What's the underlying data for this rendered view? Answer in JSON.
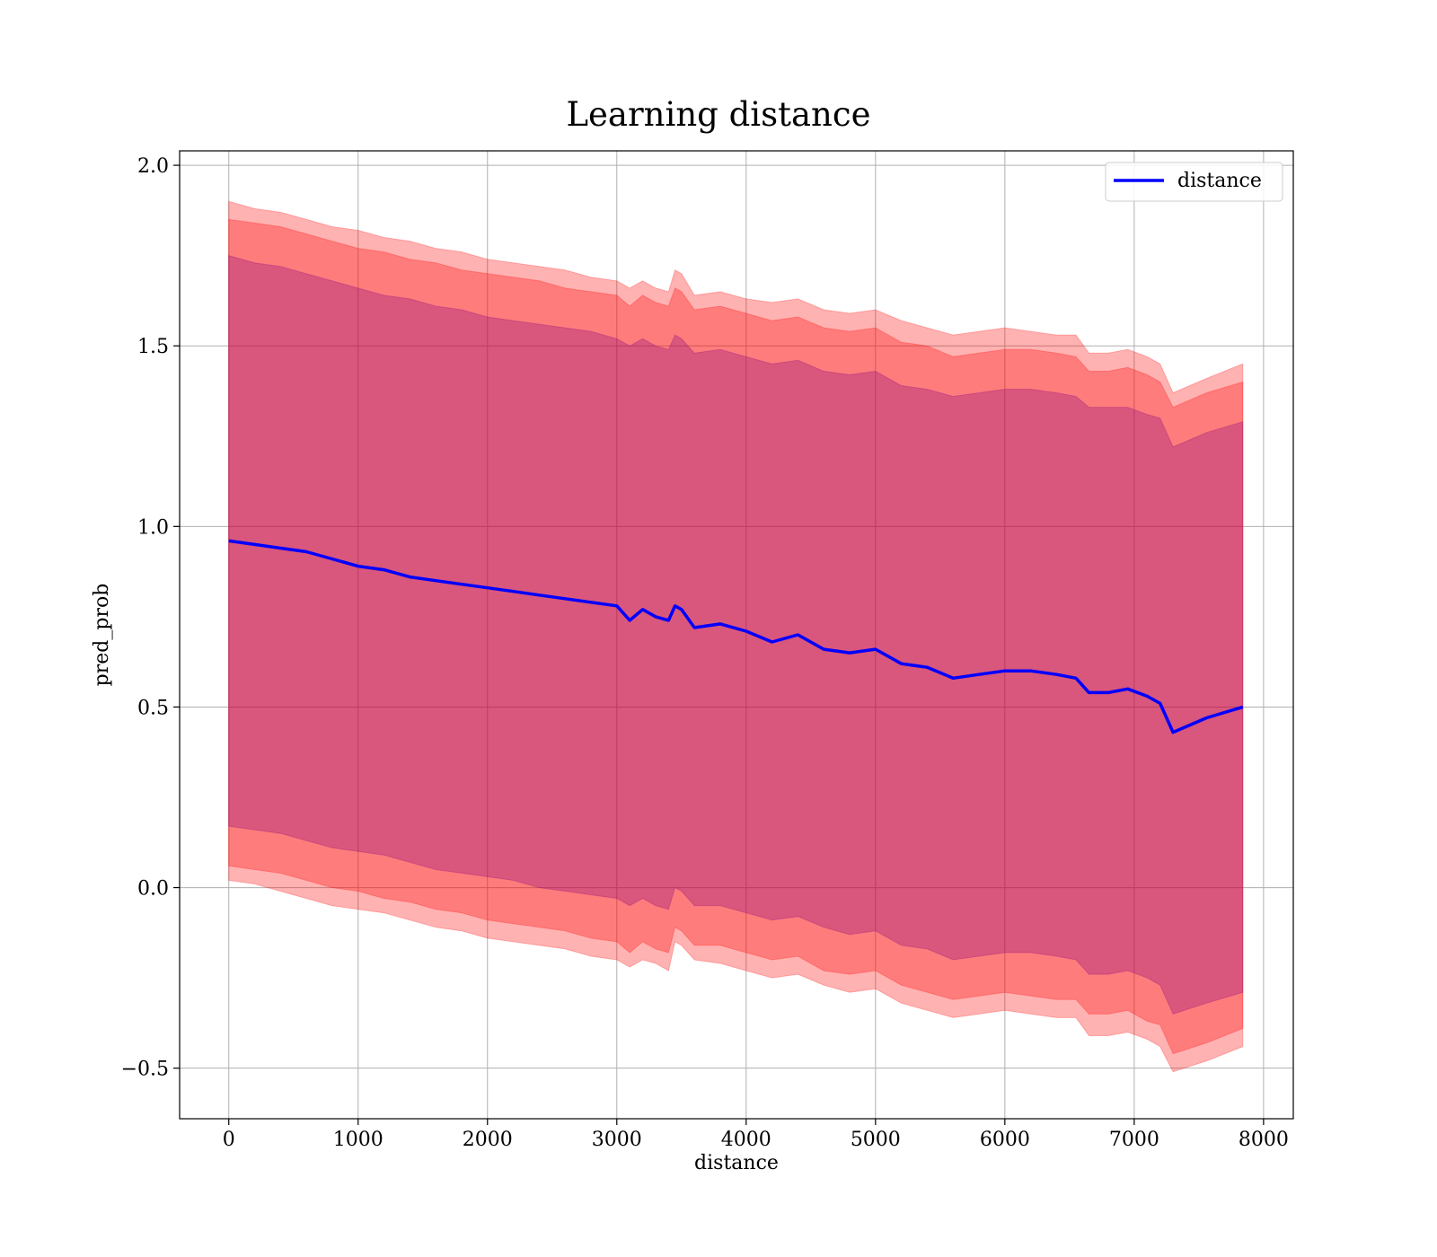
{
  "chart_data": {
    "type": "line",
    "title": "Learning distance",
    "xlabel": "distance",
    "ylabel": "pred_prob",
    "xlim": [
      -380,
      8230
    ],
    "ylim": [
      -0.64,
      2.04
    ],
    "grid": true,
    "legend_position": "top-right",
    "xticks": [
      0,
      1000,
      2000,
      3000,
      4000,
      5000,
      6000,
      7000,
      8000
    ],
    "yticks": [
      -0.5,
      0.0,
      0.5,
      1.0,
      1.5,
      2.0
    ],
    "xtick_labels": [
      "0",
      "1000",
      "2000",
      "3000",
      "4000",
      "5000",
      "6000",
      "7000",
      "8000"
    ],
    "ytick_labels": [
      "−0.5",
      "0.0",
      "0.5",
      "1.0",
      "1.5",
      "2.0"
    ],
    "x": [
      0,
      200,
      400,
      600,
      800,
      1000,
      1200,
      1400,
      1600,
      1800,
      2000,
      2200,
      2400,
      2600,
      2800,
      3000,
      3100,
      3200,
      3300,
      3400,
      3450,
      3500,
      3600,
      3800,
      4000,
      4200,
      4400,
      4600,
      4800,
      5000,
      5200,
      5400,
      5600,
      5800,
      6000,
      6200,
      6400,
      6550,
      6650,
      6800,
      6950,
      7100,
      7200,
      7300,
      7560,
      7840
    ],
    "series": [
      {
        "name": "distance",
        "color": "#0000ff",
        "values": [
          0.96,
          0.95,
          0.94,
          0.93,
          0.91,
          0.89,
          0.88,
          0.86,
          0.85,
          0.84,
          0.83,
          0.82,
          0.81,
          0.8,
          0.79,
          0.78,
          0.74,
          0.77,
          0.75,
          0.74,
          0.78,
          0.77,
          0.72,
          0.73,
          0.71,
          0.68,
          0.7,
          0.66,
          0.65,
          0.66,
          0.62,
          0.61,
          0.58,
          0.59,
          0.6,
          0.6,
          0.59,
          0.58,
          0.54,
          0.54,
          0.55,
          0.53,
          0.51,
          0.43,
          0.47,
          0.5
        ]
      }
    ],
    "bands": [
      {
        "color": "#ff0000",
        "opacity": 0.3,
        "upper": [
          1.9,
          1.88,
          1.87,
          1.85,
          1.83,
          1.82,
          1.8,
          1.79,
          1.77,
          1.76,
          1.74,
          1.73,
          1.72,
          1.71,
          1.69,
          1.68,
          1.66,
          1.68,
          1.66,
          1.65,
          1.71,
          1.7,
          1.64,
          1.65,
          1.63,
          1.62,
          1.63,
          1.6,
          1.59,
          1.6,
          1.57,
          1.55,
          1.53,
          1.54,
          1.55,
          1.54,
          1.53,
          1.53,
          1.48,
          1.48,
          1.49,
          1.47,
          1.45,
          1.37,
          1.41,
          1.45
        ],
        "lower": [
          0.02,
          0.01,
          -0.01,
          -0.03,
          -0.05,
          -0.06,
          -0.07,
          -0.09,
          -0.11,
          -0.12,
          -0.14,
          -0.15,
          -0.16,
          -0.17,
          -0.19,
          -0.2,
          -0.22,
          -0.2,
          -0.21,
          -0.23,
          -0.15,
          -0.16,
          -0.2,
          -0.21,
          -0.23,
          -0.25,
          -0.24,
          -0.27,
          -0.29,
          -0.28,
          -0.32,
          -0.34,
          -0.36,
          -0.35,
          -0.34,
          -0.35,
          -0.36,
          -0.36,
          -0.41,
          -0.41,
          -0.4,
          -0.42,
          -0.44,
          -0.51,
          -0.48,
          -0.44
        ]
      },
      {
        "color": "#ff0000",
        "opacity": 0.3,
        "upper": [
          1.85,
          1.84,
          1.83,
          1.81,
          1.79,
          1.77,
          1.76,
          1.74,
          1.73,
          1.71,
          1.7,
          1.69,
          1.68,
          1.66,
          1.65,
          1.64,
          1.61,
          1.64,
          1.62,
          1.61,
          1.66,
          1.65,
          1.6,
          1.61,
          1.59,
          1.57,
          1.58,
          1.55,
          1.54,
          1.55,
          1.51,
          1.5,
          1.47,
          1.48,
          1.49,
          1.49,
          1.48,
          1.47,
          1.43,
          1.43,
          1.44,
          1.42,
          1.4,
          1.33,
          1.37,
          1.4
        ],
        "lower": [
          0.06,
          0.05,
          0.04,
          0.02,
          0.0,
          -0.01,
          -0.03,
          -0.04,
          -0.06,
          -0.07,
          -0.09,
          -0.1,
          -0.11,
          -0.12,
          -0.14,
          -0.15,
          -0.18,
          -0.15,
          -0.17,
          -0.18,
          -0.11,
          -0.12,
          -0.16,
          -0.16,
          -0.18,
          -0.2,
          -0.19,
          -0.23,
          -0.24,
          -0.23,
          -0.27,
          -0.29,
          -0.31,
          -0.3,
          -0.29,
          -0.3,
          -0.31,
          -0.31,
          -0.35,
          -0.35,
          -0.34,
          -0.37,
          -0.38,
          -0.46,
          -0.43,
          -0.39
        ]
      },
      {
        "color": "#800080",
        "opacity": 0.3,
        "upper": [
          1.75,
          1.73,
          1.72,
          1.7,
          1.68,
          1.66,
          1.64,
          1.63,
          1.61,
          1.6,
          1.58,
          1.57,
          1.56,
          1.55,
          1.54,
          1.52,
          1.5,
          1.52,
          1.5,
          1.49,
          1.53,
          1.52,
          1.48,
          1.49,
          1.47,
          1.45,
          1.46,
          1.43,
          1.42,
          1.43,
          1.39,
          1.38,
          1.36,
          1.37,
          1.38,
          1.38,
          1.37,
          1.36,
          1.33,
          1.33,
          1.33,
          1.31,
          1.3,
          1.22,
          1.26,
          1.29
        ],
        "lower": [
          0.17,
          0.16,
          0.15,
          0.13,
          0.11,
          0.1,
          0.09,
          0.07,
          0.05,
          0.04,
          0.03,
          0.02,
          0.0,
          -0.01,
          -0.02,
          -0.03,
          -0.05,
          -0.03,
          -0.05,
          -0.06,
          0.0,
          -0.01,
          -0.05,
          -0.05,
          -0.07,
          -0.09,
          -0.08,
          -0.11,
          -0.13,
          -0.12,
          -0.16,
          -0.17,
          -0.2,
          -0.19,
          -0.18,
          -0.18,
          -0.19,
          -0.2,
          -0.24,
          -0.24,
          -0.23,
          -0.25,
          -0.27,
          -0.35,
          -0.32,
          -0.29
        ]
      }
    ]
  }
}
